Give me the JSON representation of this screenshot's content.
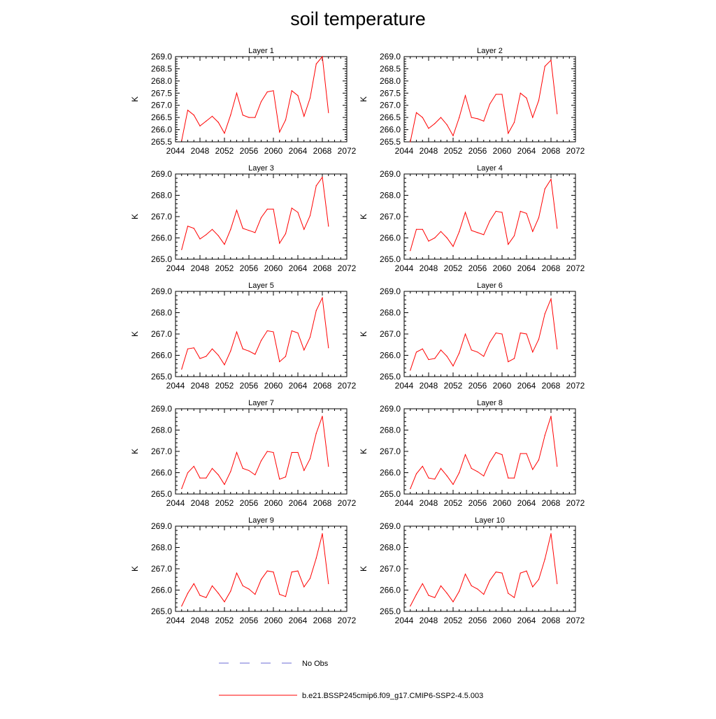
{
  "figure": {
    "title": "soil temperature",
    "legend": [
      {
        "label": "No Obs",
        "color": "#6b6bd6",
        "style": "dashed"
      },
      {
        "label": "b.e21.BSSP245cmip6.f09_g17.CMIP6-SSP2-4.5.003",
        "color": "#ff0000",
        "style": "solid"
      }
    ]
  },
  "chart_data": [
    {
      "type": "line",
      "title": "Layer 1",
      "xlabel": "",
      "ylabel": "K",
      "xlim": [
        2044,
        2072
      ],
      "ylim": [
        265.5,
        269.0
      ],
      "xticks": [
        "2044",
        "2048",
        "2052",
        "2056",
        "2060",
        "2064",
        "2068",
        "2072"
      ],
      "yticks": [
        "265.5",
        "266.0",
        "266.5",
        "267.0",
        "267.5",
        "268.0",
        "268.5",
        "269.0"
      ],
      "x": [
        2045,
        2046,
        2047,
        2048,
        2049,
        2050,
        2051,
        2052,
        2053,
        2054,
        2055,
        2056,
        2057,
        2058,
        2059,
        2060,
        2061,
        2062,
        2063,
        2064,
        2065,
        2066,
        2067,
        2068,
        2069
      ],
      "series": [
        {
          "name": "b.e21.BSSP245cmip6.f09_g17.CMIP6-SSP2-4.5.003",
          "color": "#ff0000",
          "values": [
            265.55,
            266.8,
            266.6,
            266.15,
            266.35,
            266.55,
            266.3,
            265.85,
            266.6,
            267.5,
            266.6,
            266.5,
            266.5,
            267.15,
            267.55,
            267.6,
            265.9,
            266.4,
            267.6,
            267.4,
            266.55,
            267.3,
            268.7,
            269.0,
            266.7
          ]
        }
      ]
    },
    {
      "type": "line",
      "title": "Layer 2",
      "xlabel": "",
      "ylabel": "K",
      "xlim": [
        2044,
        2072
      ],
      "ylim": [
        265.5,
        269.0
      ],
      "xticks": [
        "2044",
        "2048",
        "2052",
        "2056",
        "2060",
        "2064",
        "2068",
        "2072"
      ],
      "yticks": [
        "265.5",
        "266.0",
        "266.5",
        "267.0",
        "267.5",
        "268.0",
        "268.5",
        "269.0"
      ],
      "x": [
        2045,
        2046,
        2047,
        2048,
        2049,
        2050,
        2051,
        2052,
        2053,
        2054,
        2055,
        2056,
        2057,
        2058,
        2059,
        2060,
        2061,
        2062,
        2063,
        2064,
        2065,
        2066,
        2067,
        2068,
        2069
      ],
      "series": [
        {
          "name": "b.e21.BSSP245cmip6.f09_g17.CMIP6-SSP2-4.5.003",
          "color": "#ff0000",
          "values": [
            265.5,
            266.7,
            266.5,
            266.05,
            266.25,
            266.5,
            266.2,
            265.75,
            266.5,
            267.4,
            266.5,
            266.45,
            266.35,
            267.05,
            267.45,
            267.45,
            265.85,
            266.3,
            267.5,
            267.3,
            266.5,
            267.2,
            268.6,
            268.85,
            266.65
          ]
        }
      ]
    },
    {
      "type": "line",
      "title": "Layer 3",
      "xlabel": "",
      "ylabel": "K",
      "xlim": [
        2044,
        2072
      ],
      "ylim": [
        265.0,
        269.0
      ],
      "xticks": [
        "2044",
        "2048",
        "2052",
        "2056",
        "2060",
        "2064",
        "2068",
        "2072"
      ],
      "yticks": [
        "265.0",
        "266.0",
        "267.0",
        "268.0",
        "269.0"
      ],
      "x": [
        2045,
        2046,
        2047,
        2048,
        2049,
        2050,
        2051,
        2052,
        2053,
        2054,
        2055,
        2056,
        2057,
        2058,
        2059,
        2060,
        2061,
        2062,
        2063,
        2064,
        2065,
        2066,
        2067,
        2068,
        2069
      ],
      "series": [
        {
          "name": "b.e21.BSSP245cmip6.f09_g17.CMIP6-SSP2-4.5.003",
          "color": "#ff0000",
          "values": [
            265.45,
            266.55,
            266.45,
            265.95,
            266.15,
            266.4,
            266.1,
            265.7,
            266.4,
            267.3,
            266.45,
            266.35,
            266.25,
            266.95,
            267.35,
            267.35,
            265.75,
            266.2,
            267.4,
            267.2,
            266.4,
            267.05,
            268.45,
            268.85,
            266.55
          ]
        }
      ]
    },
    {
      "type": "line",
      "title": "Layer 4",
      "xlabel": "",
      "ylabel": "K",
      "xlim": [
        2044,
        2072
      ],
      "ylim": [
        265.0,
        269.0
      ],
      "xticks": [
        "2044",
        "2048",
        "2052",
        "2056",
        "2060",
        "2064",
        "2068",
        "2072"
      ],
      "yticks": [
        "265.0",
        "266.0",
        "267.0",
        "268.0",
        "269.0"
      ],
      "x": [
        2045,
        2046,
        2047,
        2048,
        2049,
        2050,
        2051,
        2052,
        2053,
        2054,
        2055,
        2056,
        2057,
        2058,
        2059,
        2060,
        2061,
        2062,
        2063,
        2064,
        2065,
        2066,
        2067,
        2068,
        2069
      ],
      "series": [
        {
          "name": "b.e21.BSSP245cmip6.f09_g17.CMIP6-SSP2-4.5.003",
          "color": "#ff0000",
          "values": [
            265.4,
            266.4,
            266.4,
            265.85,
            266.0,
            266.3,
            266.0,
            265.6,
            266.3,
            267.2,
            266.35,
            266.25,
            266.15,
            266.8,
            267.25,
            267.2,
            265.7,
            266.1,
            267.25,
            267.15,
            266.3,
            266.95,
            268.3,
            268.75,
            266.45
          ]
        }
      ]
    },
    {
      "type": "line",
      "title": "Layer 5",
      "xlabel": "",
      "ylabel": "K",
      "xlim": [
        2044,
        2072
      ],
      "ylim": [
        265.0,
        269.0
      ],
      "xticks": [
        "2044",
        "2048",
        "2052",
        "2056",
        "2060",
        "2064",
        "2068",
        "2072"
      ],
      "yticks": [
        "265.0",
        "266.0",
        "267.0",
        "268.0",
        "269.0"
      ],
      "x": [
        2045,
        2046,
        2047,
        2048,
        2049,
        2050,
        2051,
        2052,
        2053,
        2054,
        2055,
        2056,
        2057,
        2058,
        2059,
        2060,
        2061,
        2062,
        2063,
        2064,
        2065,
        2066,
        2067,
        2068,
        2069
      ],
      "series": [
        {
          "name": "b.e21.BSSP245cmip6.f09_g17.CMIP6-SSP2-4.5.003",
          "color": "#ff0000",
          "values": [
            265.35,
            266.3,
            266.35,
            265.85,
            265.95,
            266.3,
            266.0,
            265.55,
            266.2,
            267.1,
            266.3,
            266.2,
            266.05,
            266.7,
            267.15,
            267.1,
            265.7,
            265.95,
            267.15,
            267.05,
            266.25,
            266.85,
            268.1,
            268.7,
            266.35
          ]
        }
      ]
    },
    {
      "type": "line",
      "title": "Layer 6",
      "xlabel": "",
      "ylabel": "K",
      "xlim": [
        2044,
        2072
      ],
      "ylim": [
        265.0,
        269.0
      ],
      "xticks": [
        "2044",
        "2048",
        "2052",
        "2056",
        "2060",
        "2064",
        "2068",
        "2072"
      ],
      "yticks": [
        "265.0",
        "266.0",
        "267.0",
        "268.0",
        "269.0"
      ],
      "x": [
        2045,
        2046,
        2047,
        2048,
        2049,
        2050,
        2051,
        2052,
        2053,
        2054,
        2055,
        2056,
        2057,
        2058,
        2059,
        2060,
        2061,
        2062,
        2063,
        2064,
        2065,
        2066,
        2067,
        2068,
        2069
      ],
      "series": [
        {
          "name": "b.e21.BSSP245cmip6.f09_g17.CMIP6-SSP2-4.5.003",
          "color": "#ff0000",
          "values": [
            265.3,
            266.15,
            266.3,
            265.8,
            265.85,
            266.25,
            265.95,
            265.5,
            266.1,
            267.0,
            266.25,
            266.15,
            265.95,
            266.6,
            267.05,
            267.0,
            265.7,
            265.85,
            267.05,
            267.0,
            266.15,
            266.75,
            267.95,
            268.65,
            266.3
          ]
        }
      ]
    },
    {
      "type": "line",
      "title": "Layer 7",
      "xlabel": "",
      "ylabel": "K",
      "xlim": [
        2044,
        2072
      ],
      "ylim": [
        265.0,
        269.0
      ],
      "xticks": [
        "2044",
        "2048",
        "2052",
        "2056",
        "2060",
        "2064",
        "2068",
        "2072"
      ],
      "yticks": [
        "265.0",
        "266.0",
        "267.0",
        "268.0",
        "269.0"
      ],
      "x": [
        2045,
        2046,
        2047,
        2048,
        2049,
        2050,
        2051,
        2052,
        2053,
        2054,
        2055,
        2056,
        2057,
        2058,
        2059,
        2060,
        2061,
        2062,
        2063,
        2064,
        2065,
        2066,
        2067,
        2068,
        2069
      ],
      "series": [
        {
          "name": "b.e21.BSSP245cmip6.f09_g17.CMIP6-SSP2-4.5.003",
          "color": "#ff0000",
          "values": [
            265.25,
            266.0,
            266.3,
            265.75,
            265.75,
            266.2,
            265.9,
            265.45,
            266.05,
            266.95,
            266.2,
            266.1,
            265.9,
            266.55,
            267.0,
            266.95,
            265.7,
            265.8,
            266.95,
            266.95,
            266.1,
            266.65,
            267.85,
            268.65,
            266.3
          ]
        }
      ]
    },
    {
      "type": "line",
      "title": "Layer 8",
      "xlabel": "",
      "ylabel": "K",
      "xlim": [
        2044,
        2072
      ],
      "ylim": [
        265.0,
        269.0
      ],
      "xticks": [
        "2044",
        "2048",
        "2052",
        "2056",
        "2060",
        "2064",
        "2068",
        "2072"
      ],
      "yticks": [
        "265.0",
        "266.0",
        "267.0",
        "268.0",
        "269.0"
      ],
      "x": [
        2045,
        2046,
        2047,
        2048,
        2049,
        2050,
        2051,
        2052,
        2053,
        2054,
        2055,
        2056,
        2057,
        2058,
        2059,
        2060,
        2061,
        2062,
        2063,
        2064,
        2065,
        2066,
        2067,
        2068,
        2069
      ],
      "series": [
        {
          "name": "b.e21.BSSP245cmip6.f09_g17.CMIP6-SSP2-4.5.003",
          "color": "#ff0000",
          "values": [
            265.25,
            265.95,
            266.3,
            265.75,
            265.7,
            266.2,
            265.85,
            265.45,
            266.0,
            266.85,
            266.2,
            266.05,
            265.85,
            266.5,
            266.95,
            266.85,
            265.75,
            265.75,
            266.9,
            266.9,
            266.15,
            266.6,
            267.75,
            268.65,
            266.3
          ]
        }
      ]
    },
    {
      "type": "line",
      "title": "Layer 9",
      "xlabel": "",
      "ylabel": "K",
      "xlim": [
        2044,
        2072
      ],
      "ylim": [
        265.0,
        269.0
      ],
      "xticks": [
        "2044",
        "2048",
        "2052",
        "2056",
        "2060",
        "2064",
        "2068",
        "2072"
      ],
      "yticks": [
        "265.0",
        "266.0",
        "267.0",
        "268.0",
        "269.0"
      ],
      "x": [
        2045,
        2046,
        2047,
        2048,
        2049,
        2050,
        2051,
        2052,
        2053,
        2054,
        2055,
        2056,
        2057,
        2058,
        2059,
        2060,
        2061,
        2062,
        2063,
        2064,
        2065,
        2066,
        2067,
        2068,
        2069
      ],
      "series": [
        {
          "name": "b.e21.BSSP245cmip6.f09_g17.CMIP6-SSP2-4.5.003",
          "color": "#ff0000",
          "values": [
            265.25,
            265.85,
            266.3,
            265.75,
            265.65,
            266.2,
            265.85,
            265.45,
            265.95,
            266.8,
            266.2,
            266.05,
            265.8,
            266.5,
            266.9,
            266.85,
            265.8,
            265.7,
            266.85,
            266.9,
            266.15,
            266.55,
            267.5,
            268.65,
            266.3
          ]
        }
      ]
    },
    {
      "type": "line",
      "title": "Layer 10",
      "xlabel": "",
      "ylabel": "K",
      "xlim": [
        2044,
        2072
      ],
      "ylim": [
        265.0,
        269.0
      ],
      "xticks": [
        "2044",
        "2048",
        "2052",
        "2056",
        "2060",
        "2064",
        "2068",
        "2072"
      ],
      "yticks": [
        "265.0",
        "266.0",
        "267.0",
        "268.0",
        "269.0"
      ],
      "x": [
        2045,
        2046,
        2047,
        2048,
        2049,
        2050,
        2051,
        2052,
        2053,
        2054,
        2055,
        2056,
        2057,
        2058,
        2059,
        2060,
        2061,
        2062,
        2063,
        2064,
        2065,
        2066,
        2067,
        2068,
        2069
      ],
      "series": [
        {
          "name": "b.e21.BSSP245cmip6.f09_g17.CMIP6-SSP2-4.5.003",
          "color": "#ff0000",
          "values": [
            265.25,
            265.8,
            266.3,
            265.75,
            265.65,
            266.2,
            265.85,
            265.45,
            265.95,
            266.75,
            266.2,
            266.05,
            265.8,
            266.45,
            266.85,
            266.8,
            265.85,
            265.65,
            266.8,
            266.9,
            266.15,
            266.5,
            267.45,
            268.65,
            266.3
          ]
        }
      ]
    }
  ]
}
